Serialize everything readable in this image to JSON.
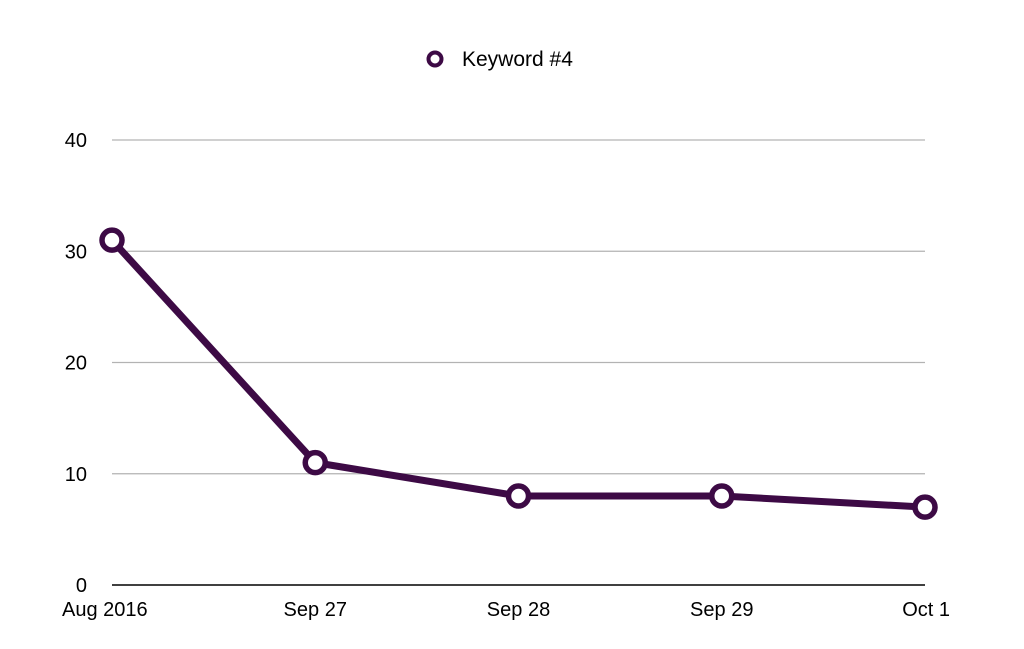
{
  "chart_data": {
    "type": "line",
    "categories": [
      "Aug 2016",
      "Sep 27",
      "Sep 28",
      "Sep 29",
      "Oct 1"
    ],
    "series": [
      {
        "name": "Keyword #4",
        "values": [
          31,
          11,
          8,
          8,
          7
        ],
        "color": "#3d0a45"
      }
    ],
    "ylim": [
      0,
      40
    ],
    "yticks": [
      "0",
      "10",
      "20",
      "30",
      "40"
    ],
    "grid": true,
    "legend": "top-center",
    "gridline_color": "#b3b3b3",
    "axis_color": "#000000"
  }
}
